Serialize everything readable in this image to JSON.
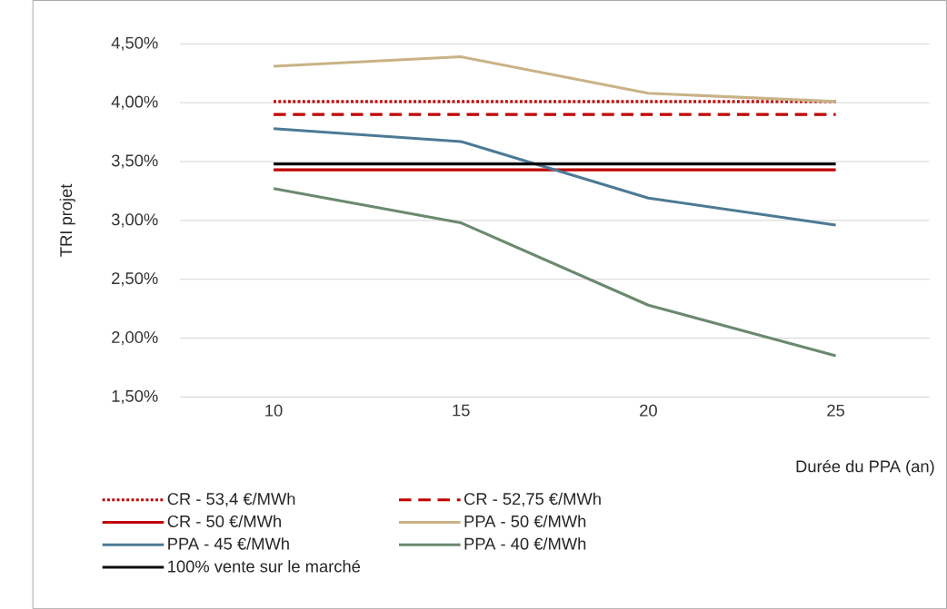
{
  "chart_data": {
    "type": "line",
    "ylabel": "TRI projet",
    "xlabel": "Durée du PPA (an)",
    "categories": [
      "10",
      "15",
      "20",
      "25"
    ],
    "ylim": [
      1.5,
      4.5
    ],
    "yticks": [
      {
        "value": 1.5,
        "label": "1,50%"
      },
      {
        "value": 2.0,
        "label": "2,00%"
      },
      {
        "value": 2.5,
        "label": "2,50%"
      },
      {
        "value": 3.0,
        "label": "3,00%"
      },
      {
        "value": 3.5,
        "label": "3,50%"
      },
      {
        "value": 4.0,
        "label": "4,00%"
      },
      {
        "value": 4.5,
        "label": "4,50%"
      }
    ],
    "grid": "y",
    "legend": "bottom",
    "series": [
      {
        "name": "CR - 53,4 €/MWh",
        "color": "#c00000",
        "line_style": "dotted",
        "values": [
          4.01,
          4.01,
          4.01,
          4.01
        ]
      },
      {
        "name": "CR - 52,75 €/MWh",
        "color": "#c00000",
        "line_style": "dashed",
        "values": [
          3.9,
          3.9,
          3.9,
          3.9
        ]
      },
      {
        "name": "CR - 50 €/MWh",
        "color": "#c00000",
        "line_style": "solid",
        "values": [
          3.43,
          3.43,
          3.43,
          3.43
        ]
      },
      {
        "name": "PPA - 50 €/MWh",
        "color": "#c9b285",
        "line_style": "solid",
        "values": [
          4.31,
          4.39,
          4.08,
          4.01
        ]
      },
      {
        "name": "PPA - 45 €/MWh",
        "color": "#4d7a95",
        "line_style": "solid",
        "values": [
          3.78,
          3.67,
          3.19,
          2.96
        ]
      },
      {
        "name": "PPA - 40 €/MWh",
        "color": "#6a8a6f",
        "line_style": "solid",
        "values": [
          3.27,
          2.98,
          2.28,
          1.85
        ]
      },
      {
        "name": "100% vente sur le marché",
        "color": "#0d0d0d",
        "line_style": "solid",
        "values": [
          3.48,
          3.48,
          3.48,
          3.48
        ]
      }
    ]
  }
}
